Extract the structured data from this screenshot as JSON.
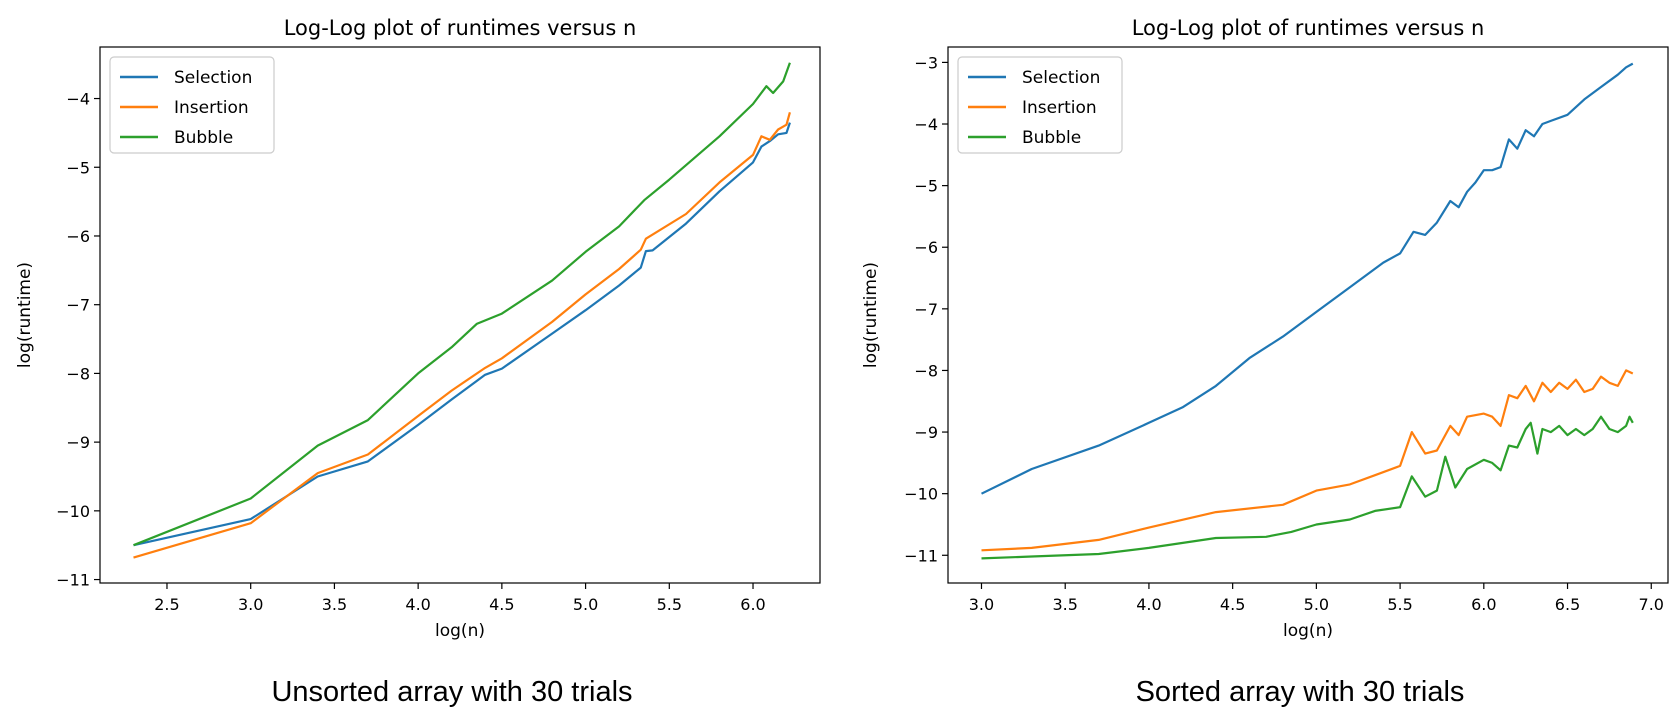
{
  "colors": {
    "selection": "#1f77b4",
    "insertion": "#ff7f0e",
    "bubble": "#2ca02c"
  },
  "chart_data": [
    {
      "type": "line",
      "title": "Log-Log plot of runtimes versus n",
      "caption": "Unsorted array with 30 trials",
      "xlabel": "log(n)",
      "ylabel": "log(runtime)",
      "xlim": [
        2.1,
        6.4
      ],
      "ylim": [
        -11.05,
        -3.25
      ],
      "xticks": [
        2.5,
        3.0,
        3.5,
        4.0,
        4.5,
        5.0,
        5.5,
        6.0
      ],
      "xtick_labels": [
        "2.5",
        "3.0",
        "3.5",
        "4.0",
        "4.5",
        "5.0",
        "5.5",
        "6.0"
      ],
      "yticks": [
        -11,
        -10,
        -9,
        -8,
        -7,
        -6,
        -5,
        -4
      ],
      "ytick_labels": [
        "−11",
        "−10",
        "−9",
        "−8",
        "−7",
        "−6",
        "−5",
        "−4"
      ],
      "legend": "top-left",
      "grid": false,
      "series": [
        {
          "name": "Selection",
          "color": "#1f77b4",
          "x": [
            2.3,
            3.0,
            3.4,
            3.7,
            4.0,
            4.2,
            4.4,
            4.5,
            4.8,
            5.0,
            5.2,
            5.33,
            5.36,
            5.4,
            5.6,
            5.8,
            6.0,
            6.05,
            6.1,
            6.15,
            6.2,
            6.22
          ],
          "y": [
            -10.5,
            -10.12,
            -9.5,
            -9.28,
            -8.75,
            -8.38,
            -8.02,
            -7.93,
            -7.42,
            -7.08,
            -6.72,
            -6.46,
            -6.22,
            -6.21,
            -5.82,
            -5.35,
            -4.93,
            -4.7,
            -4.62,
            -4.52,
            -4.5,
            -4.35
          ]
        },
        {
          "name": "Insertion",
          "color": "#ff7f0e",
          "x": [
            2.3,
            3.0,
            3.4,
            3.7,
            4.0,
            4.2,
            4.4,
            4.5,
            4.8,
            5.0,
            5.2,
            5.33,
            5.36,
            5.6,
            5.8,
            6.0,
            6.05,
            6.1,
            6.15,
            6.2,
            6.22
          ],
          "y": [
            -10.68,
            -10.18,
            -9.45,
            -9.18,
            -8.62,
            -8.25,
            -7.92,
            -7.78,
            -7.25,
            -6.85,
            -6.48,
            -6.2,
            -6.04,
            -5.68,
            -5.22,
            -4.82,
            -4.55,
            -4.6,
            -4.45,
            -4.38,
            -4.2
          ]
        },
        {
          "name": "Bubble",
          "color": "#2ca02c",
          "x": [
            2.3,
            3.0,
            3.4,
            3.7,
            4.0,
            4.2,
            4.35,
            4.5,
            4.8,
            5.0,
            5.2,
            5.35,
            5.5,
            5.8,
            6.0,
            6.08,
            6.12,
            6.18,
            6.22
          ],
          "y": [
            -10.5,
            -9.82,
            -9.05,
            -8.68,
            -8.0,
            -7.62,
            -7.28,
            -7.13,
            -6.65,
            -6.23,
            -5.86,
            -5.48,
            -5.18,
            -4.55,
            -4.08,
            -3.82,
            -3.92,
            -3.75,
            -3.48
          ]
        }
      ]
    },
    {
      "type": "line",
      "title": "Log-Log plot of runtimes versus n",
      "caption": "Sorted array with 30 trials",
      "xlabel": "log(n)",
      "ylabel": "log(runtime)",
      "xlim": [
        2.8,
        7.1
      ],
      "ylim": [
        -11.45,
        -2.75
      ],
      "xticks": [
        3.0,
        3.5,
        4.0,
        4.5,
        5.0,
        5.5,
        6.0,
        6.5,
        7.0
      ],
      "xtick_labels": [
        "3.0",
        "3.5",
        "4.0",
        "4.5",
        "5.0",
        "5.5",
        "6.0",
        "6.5",
        "7.0"
      ],
      "yticks": [
        -11,
        -10,
        -9,
        -8,
        -7,
        -6,
        -5,
        -4,
        -3
      ],
      "ytick_labels": [
        "−11",
        "−10",
        "−9",
        "−8",
        "−7",
        "−6",
        "−5",
        "−4",
        "−3"
      ],
      "legend": "top-left",
      "grid": false,
      "series": [
        {
          "name": "Selection",
          "color": "#1f77b4",
          "x": [
            3.0,
            3.3,
            3.7,
            4.0,
            4.2,
            4.4,
            4.6,
            4.8,
            5.0,
            5.2,
            5.4,
            5.5,
            5.58,
            5.65,
            5.72,
            5.8,
            5.85,
            5.9,
            5.95,
            6.0,
            6.05,
            6.1,
            6.15,
            6.2,
            6.25,
            6.3,
            6.35,
            6.4,
            6.5,
            6.6,
            6.7,
            6.8,
            6.85,
            6.89
          ],
          "y": [
            -10.0,
            -9.6,
            -9.22,
            -8.85,
            -8.6,
            -8.25,
            -7.8,
            -7.45,
            -7.05,
            -6.65,
            -6.25,
            -6.1,
            -5.75,
            -5.8,
            -5.6,
            -5.25,
            -5.35,
            -5.1,
            -4.95,
            -4.75,
            -4.75,
            -4.7,
            -4.25,
            -4.4,
            -4.1,
            -4.2,
            -4.0,
            -3.95,
            -3.85,
            -3.6,
            -3.4,
            -3.2,
            -3.08,
            -3.02
          ]
        },
        {
          "name": "Insertion",
          "color": "#ff7f0e",
          "x": [
            3.0,
            3.3,
            3.7,
            4.0,
            4.4,
            4.8,
            5.0,
            5.2,
            5.35,
            5.5,
            5.57,
            5.65,
            5.72,
            5.8,
            5.85,
            5.9,
            6.0,
            6.05,
            6.1,
            6.15,
            6.2,
            6.25,
            6.3,
            6.35,
            6.4,
            6.45,
            6.5,
            6.55,
            6.6,
            6.65,
            6.7,
            6.75,
            6.8,
            6.85,
            6.89
          ],
          "y": [
            -10.92,
            -10.88,
            -10.75,
            -10.55,
            -10.3,
            -10.18,
            -9.95,
            -9.85,
            -9.7,
            -9.55,
            -9.0,
            -9.35,
            -9.3,
            -8.9,
            -9.05,
            -8.75,
            -8.7,
            -8.75,
            -8.9,
            -8.4,
            -8.45,
            -8.25,
            -8.5,
            -8.2,
            -8.35,
            -8.2,
            -8.3,
            -8.15,
            -8.35,
            -8.3,
            -8.1,
            -8.2,
            -8.25,
            -8.0,
            -8.05
          ]
        },
        {
          "name": "Bubble",
          "color": "#2ca02c",
          "x": [
            3.0,
            3.3,
            3.7,
            4.0,
            4.4,
            4.7,
            4.85,
            5.0,
            5.2,
            5.35,
            5.5,
            5.57,
            5.65,
            5.72,
            5.77,
            5.83,
            5.9,
            6.0,
            6.05,
            6.1,
            6.15,
            6.2,
            6.25,
            6.28,
            6.32,
            6.35,
            6.4,
            6.45,
            6.5,
            6.55,
            6.6,
            6.65,
            6.7,
            6.75,
            6.8,
            6.85,
            6.87,
            6.89
          ],
          "y": [
            -11.05,
            -11.02,
            -10.98,
            -10.88,
            -10.72,
            -10.7,
            -10.62,
            -10.5,
            -10.42,
            -10.28,
            -10.22,
            -9.72,
            -10.05,
            -9.95,
            -9.4,
            -9.9,
            -9.6,
            -9.45,
            -9.5,
            -9.62,
            -9.22,
            -9.25,
            -8.95,
            -8.85,
            -9.35,
            -8.95,
            -9.0,
            -8.9,
            -9.05,
            -8.95,
            -9.05,
            -8.95,
            -8.75,
            -8.95,
            -9.0,
            -8.9,
            -8.75,
            -8.85
          ]
        }
      ]
    }
  ]
}
